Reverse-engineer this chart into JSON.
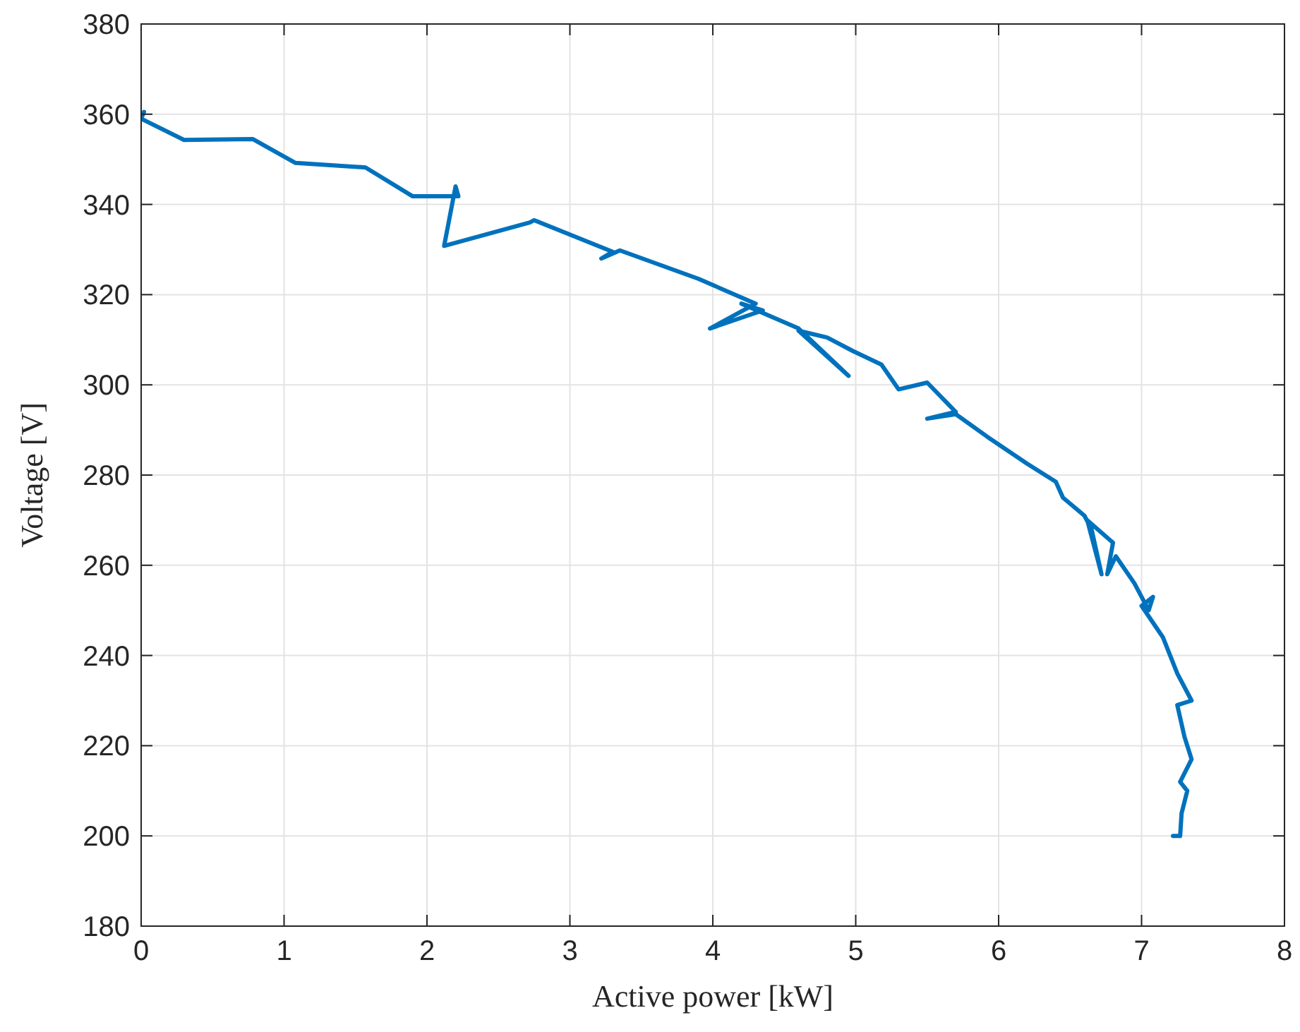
{
  "chart_data": {
    "type": "line",
    "xlabel": "Active power [kW]",
    "ylabel": "Voltage [V]",
    "xlim": [
      0,
      8
    ],
    "xticks": [
      0,
      1,
      2,
      3,
      4,
      5,
      6,
      7,
      8
    ],
    "ylim": [
      180,
      380
    ],
    "yticks": [
      180,
      200,
      220,
      240,
      260,
      280,
      300,
      320,
      340,
      360,
      380
    ],
    "grid": true,
    "marker": "none",
    "line_style": "solid",
    "series": [
      {
        "color": "#0072bd",
        "x": [
          0.02,
          0.0,
          0.3,
          0.78,
          1.08,
          1.57,
          1.9,
          2.22,
          2.2,
          2.12,
          2.72,
          2.75,
          3.3,
          3.22,
          3.35,
          3.9,
          4.3,
          3.98,
          4.35,
          4.2,
          4.6,
          4.95,
          4.6,
          4.8,
          4.98,
          5.18,
          5.3,
          5.5,
          5.7,
          5.5,
          5.7,
          5.92,
          6.2,
          6.4,
          6.45,
          6.6,
          6.65,
          6.72,
          6.62,
          6.8,
          6.76,
          6.82,
          6.95,
          7.05,
          7.08,
          7.0,
          7.15,
          7.25,
          7.35,
          7.25,
          7.3,
          7.35,
          7.27,
          7.32,
          7.28,
          7.27,
          7.22
        ],
        "values": [
          360.5,
          359,
          354.3,
          354.5,
          349.2,
          348.2,
          341.8,
          341.8,
          344,
          330.8,
          336,
          336.5,
          329.5,
          328,
          329.8,
          323.5,
          318,
          312.5,
          316.5,
          318,
          312.5,
          302,
          312,
          310.5,
          307.5,
          304.5,
          299,
          300.5,
          294,
          292.5,
          293.5,
          288.5,
          282.5,
          278.5,
          275,
          271,
          268,
          258,
          270,
          265,
          258,
          262,
          256,
          250,
          253,
          251,
          244,
          236,
          230,
          229,
          222,
          217,
          212,
          210,
          205,
          200,
          200
        ]
      }
    ]
  }
}
